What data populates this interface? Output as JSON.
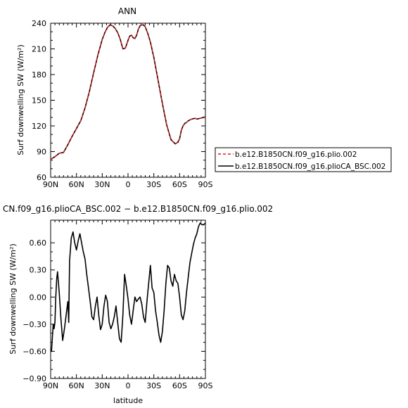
{
  "chart_data": [
    {
      "type": "line",
      "title": "ANN",
      "xlabel": "",
      "ylabel": "Surf downwelling SW (W/m²)",
      "x_ticks": [
        {
          "value": 90,
          "label": "90N"
        },
        {
          "value": 60,
          "label": "60N"
        },
        {
          "value": 30,
          "label": "30N"
        },
        {
          "value": 0,
          "label": "0"
        },
        {
          "value": -30,
          "label": "30S"
        },
        {
          "value": -60,
          "label": "60S"
        },
        {
          "value": -90,
          "label": "90S"
        }
      ],
      "y_ticks": [
        60,
        90,
        120,
        150,
        180,
        210,
        240
      ],
      "xlim": [
        90,
        -90
      ],
      "ylim": [
        60,
        240
      ],
      "grid": false,
      "legend_position": "right, outside plot",
      "series": [
        {
          "name": "b.e12.B1850CN.f09_g16.plio.002",
          "color": "#d62020",
          "dash": "dashed",
          "x": [
            90,
            85,
            80,
            75,
            70,
            65,
            60,
            55,
            50,
            45,
            40,
            35,
            30,
            27,
            24,
            21,
            18,
            15,
            12,
            9,
            6,
            3,
            0,
            -2,
            -4,
            -6,
            -8,
            -10,
            -12,
            -14,
            -16,
            -18,
            -20,
            -23,
            -26,
            -30,
            -35,
            -40,
            -45,
            -50,
            -55,
            -58,
            -60,
            -62,
            -64,
            -66,
            -68,
            -70,
            -74,
            -78,
            -80,
            -84,
            -88,
            -90
          ],
          "y": [
            81,
            84,
            88,
            89,
            98,
            108,
            117,
            126,
            141,
            160,
            182,
            203,
            221,
            229,
            235,
            238,
            237,
            234,
            229,
            221,
            210,
            211,
            220,
            225,
            226,
            223,
            222,
            226,
            233,
            237,
            238,
            238,
            236,
            228,
            218,
            200,
            173,
            146,
            121,
            104,
            99,
            101,
            105,
            115,
            120,
            123,
            124,
            126,
            128,
            129,
            128,
            129,
            130,
            131
          ]
        },
        {
          "name": "b.e12.B1850CN.f09_g16.plioCA_BSC.002",
          "color": "#000000",
          "dash": "solid",
          "x": [
            90,
            85,
            80,
            75,
            70,
            65,
            60,
            55,
            50,
            45,
            40,
            35,
            30,
            27,
            24,
            21,
            18,
            15,
            12,
            9,
            6,
            3,
            0,
            -2,
            -4,
            -6,
            -8,
            -10,
            -12,
            -14,
            -16,
            -18,
            -20,
            -23,
            -26,
            -30,
            -35,
            -40,
            -45,
            -50,
            -55,
            -58,
            -60,
            -62,
            -64,
            -66,
            -68,
            -70,
            -74,
            -78,
            -80,
            -84,
            -88,
            -90
          ],
          "y": [
            81,
            84,
            88,
            89,
            98,
            108,
            117,
            126,
            141,
            160,
            182,
            203,
            221,
            229,
            235,
            238,
            237,
            234,
            229,
            221,
            210,
            211,
            220,
            225,
            226,
            223,
            222,
            226,
            233,
            237,
            238,
            238,
            236,
            228,
            218,
            200,
            173,
            146,
            121,
            104,
            99,
            101,
            105,
            115,
            120,
            123,
            124,
            126,
            128,
            129,
            128,
            129,
            130,
            131
          ]
        }
      ]
    },
    {
      "type": "line",
      "title": "CN.f09_g16.plioCA_BSC.002 − b.e12.B1850CN.f09_g16.plio.002",
      "xlabel": "latitude",
      "ylabel": "Surf downwelling SW (W/m²)",
      "x_ticks": [
        {
          "value": 90,
          "label": "90N"
        },
        {
          "value": 60,
          "label": "60N"
        },
        {
          "value": 30,
          "label": "30N"
        },
        {
          "value": 0,
          "label": "0"
        },
        {
          "value": -30,
          "label": "30S"
        },
        {
          "value": -60,
          "label": "60S"
        },
        {
          "value": -90,
          "label": "90S"
        }
      ],
      "y_ticks": [
        {
          "value": -0.9,
          "label": "−0.90"
        },
        {
          "value": -0.6,
          "label": "−0.60"
        },
        {
          "value": -0.3,
          "label": "−0.30"
        },
        {
          "value": 0,
          "label": "0.00"
        },
        {
          "value": 0.3,
          "label": "0.30"
        },
        {
          "value": 0.6,
          "label": "0.60"
        }
      ],
      "xlim": [
        90,
        -90
      ],
      "ylim": [
        -0.9,
        0.85
      ],
      "grid": false,
      "series": [
        {
          "color": "#000000",
          "dash": "solid",
          "x": [
            90,
            89,
            88,
            87,
            86,
            85,
            84,
            83,
            82,
            80,
            78,
            76,
            74,
            72,
            70,
            69,
            68,
            66,
            64,
            62,
            60,
            58,
            56,
            54,
            52,
            50,
            48,
            46,
            44,
            42,
            40,
            38,
            36,
            34,
            32,
            30,
            28,
            26,
            24,
            22,
            20,
            18,
            16,
            14,
            12,
            10,
            8,
            6,
            4,
            2,
            0,
            -2,
            -4,
            -6,
            -8,
            -10,
            -12,
            -14,
            -16,
            -18,
            -20,
            -22,
            -24,
            -26,
            -28,
            -30,
            -32,
            -34,
            -36,
            -38,
            -40,
            -42,
            -44,
            -46,
            -48,
            -50,
            -52,
            -54,
            -56,
            -58,
            -60,
            -62,
            -64,
            -66,
            -68,
            -70,
            -72,
            -74,
            -76,
            -78,
            -80,
            -82,
            -84,
            -86,
            -88,
            -90
          ],
          "y": [
            -0.6,
            -0.6,
            -0.45,
            -0.3,
            -0.35,
            -0.28,
            0.0,
            0.2,
            0.28,
            0.05,
            -0.25,
            -0.48,
            -0.35,
            -0.2,
            -0.05,
            -0.28,
            0.4,
            0.65,
            0.72,
            0.6,
            0.52,
            0.62,
            0.7,
            0.6,
            0.5,
            0.42,
            0.25,
            0.1,
            -0.05,
            -0.22,
            -0.25,
            -0.1,
            0.0,
            -0.2,
            -0.36,
            -0.3,
            -0.1,
            0.02,
            -0.05,
            -0.28,
            -0.35,
            -0.3,
            -0.22,
            -0.1,
            -0.28,
            -0.46,
            -0.5,
            -0.2,
            0.25,
            0.12,
            -0.02,
            -0.2,
            -0.3,
            -0.15,
            0.0,
            -0.05,
            -0.02,
            0.0,
            -0.08,
            -0.22,
            -0.28,
            -0.05,
            0.15,
            0.35,
            0.1,
            0.05,
            -0.15,
            -0.28,
            -0.42,
            -0.5,
            -0.38,
            -0.15,
            0.15,
            0.35,
            0.32,
            0.18,
            0.12,
            0.25,
            0.18,
            0.15,
            0.0,
            -0.2,
            -0.25,
            -0.15,
            0.05,
            0.22,
            0.38,
            0.48,
            0.58,
            0.65,
            0.7,
            0.78,
            0.82,
            0.8,
            0.8,
            0.82
          ]
        }
      ]
    }
  ]
}
